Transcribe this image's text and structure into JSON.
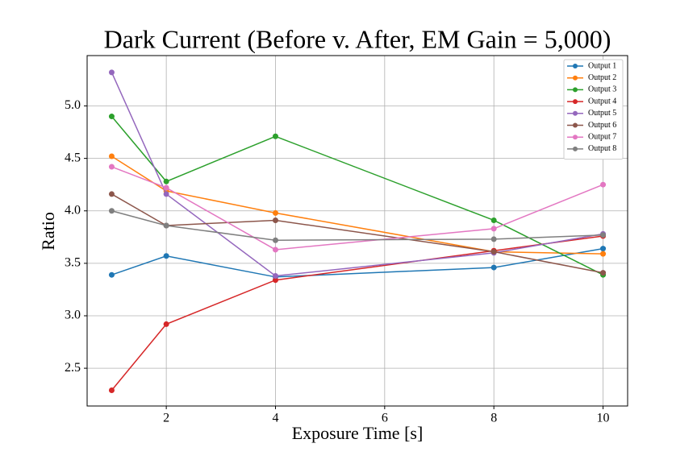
{
  "chart_data": {
    "type": "line",
    "title": "Dark Current (Before v. After, EM Gain = 5,000)",
    "x_label": "Exposure Time [s]",
    "y_label": "Ratio",
    "x": [
      1,
      2,
      4,
      8,
      10
    ],
    "series": [
      {
        "name": "Output 1",
        "color": "#1f77b4",
        "values": [
          3.39,
          3.57,
          3.37,
          3.46,
          3.64
        ]
      },
      {
        "name": "Output 2",
        "color": "#ff7f0e",
        "values": [
          4.52,
          4.19,
          3.98,
          3.61,
          3.59
        ]
      },
      {
        "name": "Output 3",
        "color": "#2ca02c",
        "values": [
          4.9,
          4.28,
          4.71,
          3.91,
          3.39
        ]
      },
      {
        "name": "Output 4",
        "color": "#d62728",
        "values": [
          2.29,
          2.92,
          3.34,
          3.62,
          3.76
        ]
      },
      {
        "name": "Output 5",
        "color": "#9467bd",
        "values": [
          5.32,
          4.16,
          3.38,
          3.6,
          3.78
        ]
      },
      {
        "name": "Output 6",
        "color": "#8c564b",
        "values": [
          4.16,
          3.86,
          3.91,
          3.61,
          3.41
        ]
      },
      {
        "name": "Output 7",
        "color": "#e377c2",
        "values": [
          4.42,
          4.22,
          3.63,
          3.83,
          4.25
        ]
      },
      {
        "name": "Output 8",
        "color": "#7f7f7f",
        "values": [
          4.0,
          3.86,
          3.72,
          3.73,
          3.77
        ]
      }
    ],
    "xlim": [
      0.55,
      10.45
    ],
    "ylim": [
      2.14,
      5.48
    ],
    "xticks": [
      2,
      4,
      6,
      8,
      10
    ],
    "yticks": [
      {
        "value": 2.5,
        "label": "2.5"
      },
      {
        "value": 3.0,
        "label": "3.0"
      },
      {
        "value": 3.5,
        "label": "3.5"
      },
      {
        "value": 4.0,
        "label": "4.0"
      },
      {
        "value": 4.5,
        "label": "4.5"
      },
      {
        "value": 5.0,
        "label": "5.0"
      }
    ],
    "grid": true,
    "legend": "upper-right"
  }
}
